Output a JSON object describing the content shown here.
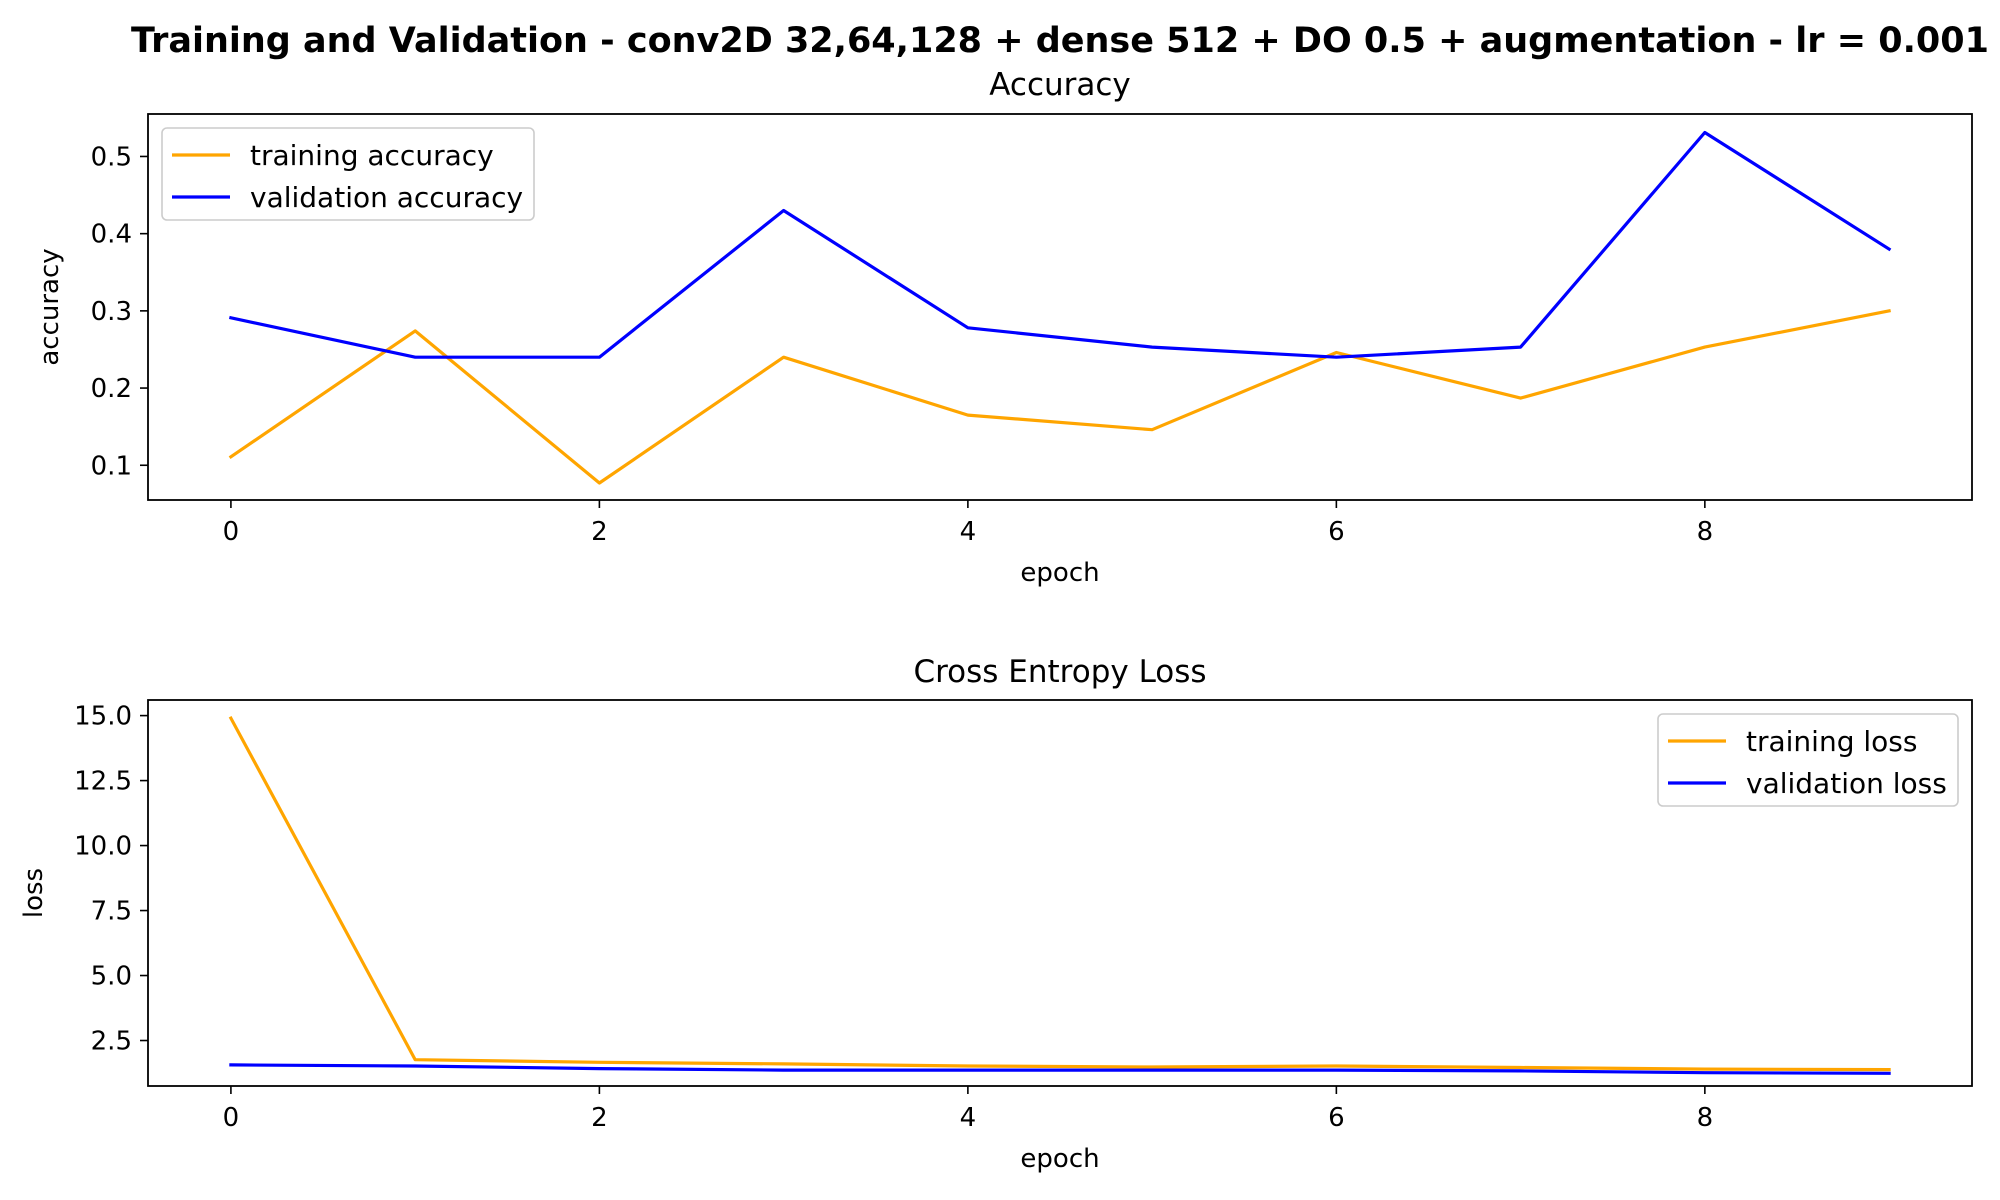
{
  "figure": {
    "suptitle": "Training and Validation - conv2D 32,64,128 + dense 512  + DO 0.5 + augmentation - lr = 0.001"
  },
  "chart_data": [
    {
      "type": "line",
      "title": "Accuracy",
      "xlabel": "epoch",
      "ylabel": "accuracy",
      "xlim": [
        -0.45,
        9.45
      ],
      "ylim": [
        0.055,
        0.555
      ],
      "xticks": [
        "0",
        "2",
        "4",
        "6",
        "8"
      ],
      "yticks": [
        "0.1",
        "0.2",
        "0.3",
        "0.4",
        "0.5"
      ],
      "x": [
        0,
        1,
        2,
        3,
        4,
        5,
        6,
        7,
        8,
        9
      ],
      "legend_position": "upper-left",
      "series": [
        {
          "name": "training accuracy",
          "color": "#FFA500",
          "values": [
            0.111,
            0.274,
            0.077,
            0.24,
            0.165,
            0.146,
            0.246,
            0.187,
            0.253,
            0.3
          ]
        },
        {
          "name": "validation accuracy",
          "color": "#0000FF",
          "values": [
            0.291,
            0.24,
            0.24,
            0.43,
            0.278,
            0.253,
            0.24,
            0.253,
            0.531,
            0.38
          ]
        }
      ]
    },
    {
      "type": "line",
      "title": "Cross Entropy Loss",
      "xlabel": "epoch",
      "ylabel": "loss",
      "xlim": [
        -0.45,
        9.45
      ],
      "ylim": [
        0.75,
        15.6
      ],
      "xticks": [
        "0",
        "2",
        "4",
        "6",
        "8"
      ],
      "yticks": [
        "2.5",
        "5.0",
        "7.5",
        "10.0",
        "12.5",
        "15.0"
      ],
      "x": [
        0,
        1,
        2,
        3,
        4,
        5,
        6,
        7,
        8,
        9
      ],
      "legend_position": "upper-right",
      "series": [
        {
          "name": "training loss",
          "color": "#FFA500",
          "values": [
            14.9,
            1.76,
            1.66,
            1.6,
            1.52,
            1.48,
            1.52,
            1.46,
            1.4,
            1.38
          ]
        },
        {
          "name": "validation loss",
          "color": "#0000FF",
          "values": [
            1.56,
            1.52,
            1.42,
            1.36,
            1.36,
            1.36,
            1.36,
            1.33,
            1.26,
            1.24
          ]
        }
      ]
    }
  ]
}
